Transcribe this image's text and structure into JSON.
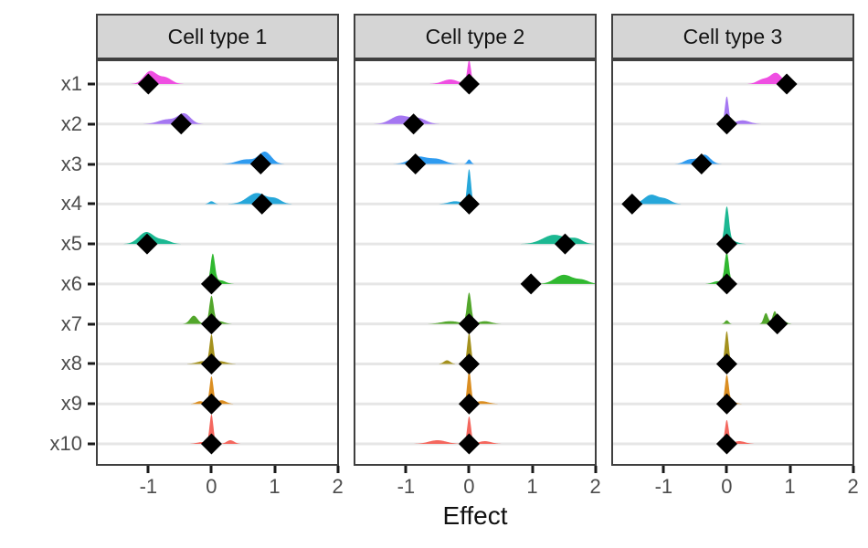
{
  "style": {
    "strip_fill": "#D5D5D5",
    "strip_border": "#3F3F3F",
    "panel_border": "#3F3F3F",
    "grid_color": "#E6E6E6",
    "axis_text": "#4D4D4D",
    "strip_text": "#141414",
    "marker_color": "#000000"
  },
  "chart_data": {
    "type": "ridgeline",
    "subtype": "faceted posterior densities with diamond point estimates",
    "xlabel": "Effect",
    "x_ticks": [
      -1,
      0,
      1,
      2
    ],
    "x_tick_labels": [
      "-1",
      "0",
      "1",
      "2"
    ],
    "x_domain": [
      -1.83,
      2.02
    ],
    "grid": "horizontal-major-only",
    "legend": "none",
    "y_labels": [
      "x1",
      "x2",
      "x3",
      "x4",
      "x5",
      "x6",
      "x7",
      "x8",
      "x9",
      "x10"
    ],
    "variables": [
      {
        "name": "x1",
        "color": "#EF4FE2"
      },
      {
        "name": "x2",
        "color": "#A577F2"
      },
      {
        "name": "x3",
        "color": "#2E9BF0"
      },
      {
        "name": "x4",
        "color": "#26A7DA"
      },
      {
        "name": "x5",
        "color": "#1CB892"
      },
      {
        "name": "x6",
        "color": "#30B830"
      },
      {
        "name": "x7",
        "color": "#52A62B"
      },
      {
        "name": "x8",
        "color": "#A4911D"
      },
      {
        "name": "x9",
        "color": "#DB8E21"
      },
      {
        "name": "x10",
        "color": "#F4675E"
      }
    ],
    "facets": [
      {
        "label": "Cell type 1",
        "rows": [
          {
            "var": "x1",
            "diamond": -1.0,
            "density": [
              [
                -0.97,
                0.1,
                14
              ],
              [
                -0.73,
                0.1,
                7
              ]
            ]
          },
          {
            "var": "x2",
            "diamond": -0.48,
            "density": [
              [
                -0.43,
                0.1,
                11
              ],
              [
                -0.7,
                0.14,
                5
              ]
            ]
          },
          {
            "var": "x3",
            "diamond": 0.78,
            "density": [
              [
                0.85,
                0.1,
                13
              ],
              [
                0.55,
                0.14,
                5
              ]
            ]
          },
          {
            "var": "x4",
            "diamond": 0.8,
            "density": [
              [
                0.72,
                0.15,
                12
              ],
              [
                1.02,
                0.09,
                5
              ],
              [
                0.0,
                0.04,
                3
              ]
            ]
          },
          {
            "var": "x5",
            "diamond": -1.02,
            "density": [
              [
                -1.03,
                0.12,
                13
              ],
              [
                -0.75,
                0.1,
                4
              ]
            ]
          },
          {
            "var": "x6",
            "diamond": 0.0,
            "density": [
              [
                0.02,
                0.035,
                32
              ],
              [
                0.14,
                0.08,
                4
              ]
            ]
          },
          {
            "var": "x7",
            "diamond": 0.0,
            "density": [
              [
                0.0,
                0.035,
                30
              ],
              [
                -0.28,
                0.06,
                9
              ],
              [
                0.12,
                0.08,
                3
              ]
            ]
          },
          {
            "var": "x8",
            "diamond": 0.0,
            "density": [
              [
                0.0,
                0.03,
                30
              ],
              [
                0.13,
                0.1,
                3
              ],
              [
                -0.13,
                0.1,
                3
              ]
            ]
          },
          {
            "var": "x9",
            "diamond": 0.0,
            "density": [
              [
                0.0,
                0.03,
                30
              ],
              [
                0.16,
                0.07,
                4
              ],
              [
                -0.18,
                0.06,
                3
              ]
            ]
          },
          {
            "var": "x10",
            "diamond": 0.0,
            "density": [
              [
                0.0,
                0.03,
                32
              ],
              [
                0.3,
                0.06,
                4
              ],
              [
                -0.15,
                0.08,
                2
              ]
            ]
          }
        ]
      },
      {
        "label": "Cell type 2",
        "rows": [
          {
            "var": "x1",
            "diamond": 0.0,
            "density": [
              [
                0.0,
                0.03,
                26
              ],
              [
                -0.3,
                0.12,
                5
              ]
            ]
          },
          {
            "var": "x2",
            "diamond": -0.88,
            "density": [
              [
                -1.1,
                0.14,
                9
              ],
              [
                -0.8,
                0.12,
                6
              ]
            ]
          },
          {
            "var": "x3",
            "diamond": -0.85,
            "density": [
              [
                -0.8,
                0.14,
                8
              ],
              [
                -0.5,
                0.12,
                5
              ],
              [
                0.0,
                0.03,
                5
              ]
            ]
          },
          {
            "var": "x4",
            "diamond": 0.0,
            "density": [
              [
                0.0,
                0.03,
                38
              ],
              [
                -0.22,
                0.1,
                3
              ]
            ]
          },
          {
            "var": "x5",
            "diamond": 1.52,
            "density": [
              [
                1.35,
                0.18,
                10
              ],
              [
                1.7,
                0.1,
                5
              ]
            ]
          },
          {
            "var": "x6",
            "diamond": 0.98,
            "density": [
              [
                1.5,
                0.14,
                10
              ],
              [
                1.8,
                0.1,
                4
              ]
            ]
          },
          {
            "var": "x7",
            "diamond": 0.0,
            "density": [
              [
                0.0,
                0.035,
                34
              ],
              [
                -0.3,
                0.14,
                3
              ],
              [
                0.25,
                0.1,
                3
              ]
            ]
          },
          {
            "var": "x8",
            "diamond": 0.0,
            "density": [
              [
                0.0,
                0.03,
                34
              ],
              [
                -0.35,
                0.05,
                4
              ]
            ]
          },
          {
            "var": "x9",
            "diamond": 0.0,
            "density": [
              [
                0.0,
                0.03,
                36
              ],
              [
                0.2,
                0.1,
                3
              ]
            ]
          },
          {
            "var": "x10",
            "diamond": 0.0,
            "density": [
              [
                0.0,
                0.03,
                30
              ],
              [
                -0.5,
                0.14,
                4
              ],
              [
                0.25,
                0.1,
                3
              ]
            ]
          }
        ]
      },
      {
        "label": "Cell type 3",
        "rows": [
          {
            "var": "x1",
            "diamond": 0.95,
            "density": [
              [
                0.78,
                0.09,
                12
              ],
              [
                0.57,
                0.09,
                5
              ]
            ]
          },
          {
            "var": "x2",
            "diamond": 0.0,
            "density": [
              [
                0.0,
                0.03,
                30
              ],
              [
                0.25,
                0.11,
                4
              ]
            ]
          },
          {
            "var": "x3",
            "diamond": -0.4,
            "density": [
              [
                -0.35,
                0.09,
                10
              ],
              [
                -0.58,
                0.09,
                5
              ]
            ]
          },
          {
            "var": "x4",
            "diamond": -1.5,
            "density": [
              [
                -1.2,
                0.11,
                10
              ],
              [
                -0.97,
                0.09,
                5
              ]
            ]
          },
          {
            "var": "x5",
            "diamond": 0.0,
            "density": [
              [
                0.0,
                0.035,
                38
              ],
              [
                0.06,
                0.09,
                4
              ]
            ]
          },
          {
            "var": "x6",
            "diamond": 0.0,
            "density": [
              [
                0.0,
                0.035,
                34
              ],
              [
                -0.14,
                0.08,
                3
              ]
            ]
          },
          {
            "var": "x7",
            "diamond": 0.8,
            "density": [
              [
                0.62,
                0.035,
                12
              ],
              [
                0.76,
                0.035,
                14
              ],
              [
                0.0,
                0.03,
                4
              ],
              [
                0.9,
                0.05,
                3
              ]
            ]
          },
          {
            "var": "x8",
            "diamond": 0.0,
            "density": [
              [
                0.0,
                0.03,
                36
              ]
            ]
          },
          {
            "var": "x9",
            "diamond": 0.0,
            "density": [
              [
                0.0,
                0.03,
                30
              ],
              [
                0.06,
                0.07,
                3
              ]
            ]
          },
          {
            "var": "x10",
            "diamond": 0.0,
            "density": [
              [
                0.0,
                0.03,
                26
              ],
              [
                0.2,
                0.09,
                3
              ]
            ]
          }
        ]
      }
    ]
  }
}
